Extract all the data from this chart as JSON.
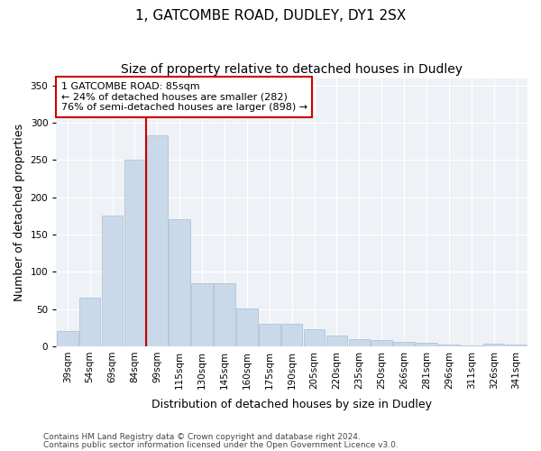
{
  "title1": "1, GATCOMBE ROAD, DUDLEY, DY1 2SX",
  "title2": "Size of property relative to detached houses in Dudley",
  "xlabel": "Distribution of detached houses by size in Dudley",
  "ylabel": "Number of detached properties",
  "categories": [
    "39sqm",
    "54sqm",
    "69sqm",
    "84sqm",
    "99sqm",
    "115sqm",
    "130sqm",
    "145sqm",
    "160sqm",
    "175sqm",
    "190sqm",
    "205sqm",
    "220sqm",
    "235sqm",
    "250sqm",
    "266sqm",
    "281sqm",
    "296sqm",
    "311sqm",
    "326sqm",
    "341sqm"
  ],
  "values": [
    20,
    65,
    175,
    250,
    283,
    170,
    85,
    85,
    51,
    30,
    30,
    23,
    15,
    10,
    8,
    6,
    5,
    2,
    1,
    3,
    2
  ],
  "bar_color": "#c9d9ea",
  "bar_edge_color": "#aabccc",
  "red_line_x": 3.5,
  "annotation_line1": "1 GATCOMBE ROAD: 85sqm",
  "annotation_line2": "← 24% of detached houses are smaller (282)",
  "annotation_line3": "76% of semi-detached houses are larger (898) →",
  "annotation_box_color": "#ffffff",
  "annotation_box_edge": "#cc0000",
  "footer1": "Contains HM Land Registry data © Crown copyright and database right 2024.",
  "footer2": "Contains public sector information licensed under the Open Government Licence v3.0.",
  "ylim": [
    0,
    360
  ],
  "yticks": [
    0,
    50,
    100,
    150,
    200,
    250,
    300,
    350
  ],
  "bg_color": "#eef2f7",
  "grid_color": "#ffffff",
  "fig_bg_color": "#ffffff",
  "title_fontsize": 11,
  "subtitle_fontsize": 10,
  "axis_label_fontsize": 9,
  "tick_fontsize": 7.5,
  "footer_fontsize": 6.5
}
